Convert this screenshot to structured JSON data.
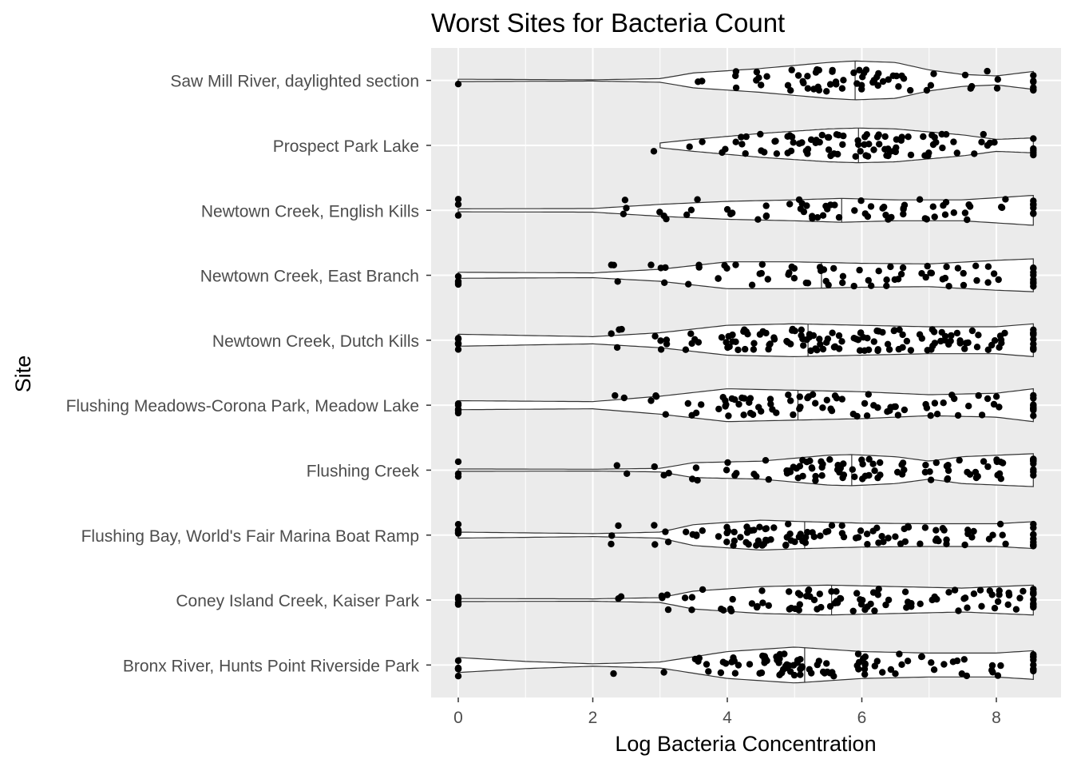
{
  "chart_data": {
    "type": "violin",
    "title": "Worst Sites for Bacteria Count",
    "xlabel": "Log Bacteria Concentration",
    "ylabel": "Site",
    "xlim": [
      -0.2,
      8.9
    ],
    "x_ticks": [
      0,
      2,
      4,
      6,
      8
    ],
    "grid": true,
    "panel_background": "#ebebeb",
    "overlay": "jittered points with median line",
    "sites": [
      {
        "name": "Bronx River, Hunts Point Riverside Park",
        "median": 5.15,
        "profile": [
          [
            0,
            0.25
          ],
          [
            1,
            0.12
          ],
          [
            2,
            0.04
          ],
          [
            3,
            0.1
          ],
          [
            4,
            0.45
          ],
          [
            5,
            0.6
          ],
          [
            5.15,
            0.58
          ],
          [
            6,
            0.45
          ],
          [
            7,
            0.4
          ],
          [
            8,
            0.4
          ],
          [
            8.55,
            0.48
          ]
        ],
        "points": [
          [
            0,
            6
          ],
          [
            2.4,
            1
          ],
          [
            3,
            1
          ],
          [
            3.5,
            3
          ],
          [
            3.8,
            3
          ],
          [
            4,
            5
          ],
          [
            4.2,
            3
          ],
          [
            4.5,
            8
          ],
          [
            4.8,
            10
          ],
          [
            5,
            10
          ],
          [
            5.2,
            6
          ],
          [
            5.5,
            8
          ],
          [
            6,
            10
          ],
          [
            6.3,
            4
          ],
          [
            6.6,
            4
          ],
          [
            7,
            4
          ],
          [
            7.3,
            3
          ],
          [
            7.6,
            3
          ],
          [
            8,
            5
          ],
          [
            8.55,
            8
          ]
        ]
      },
      {
        "name": "Coney Island Creek, Kaiser Park",
        "median": 5.55,
        "profile": [
          [
            0,
            0.05
          ],
          [
            2,
            0.04
          ],
          [
            3,
            0.08
          ],
          [
            3.5,
            0.3
          ],
          [
            4.5,
            0.45
          ],
          [
            5.5,
            0.5
          ],
          [
            6.5,
            0.45
          ],
          [
            7.5,
            0.4
          ],
          [
            8.55,
            0.5
          ]
        ],
        "points": [
          [
            0,
            4
          ],
          [
            2.4,
            2
          ],
          [
            3,
            4
          ],
          [
            3.5,
            4
          ],
          [
            4,
            5
          ],
          [
            4.5,
            6
          ],
          [
            5,
            8
          ],
          [
            5.3,
            8
          ],
          [
            5.6,
            8
          ],
          [
            6,
            8
          ],
          [
            6.3,
            6
          ],
          [
            6.6,
            5
          ],
          [
            7,
            4
          ],
          [
            7.4,
            5
          ],
          [
            7.7,
            4
          ],
          [
            8,
            6
          ],
          [
            8.3,
            6
          ],
          [
            8.55,
            10
          ]
        ]
      },
      {
        "name": "Flushing Bay, World's Fair Marina Boat Ramp",
        "median": 5.15,
        "profile": [
          [
            0,
            0.1
          ],
          [
            2,
            0.05
          ],
          [
            3,
            0.1
          ],
          [
            3.5,
            0.35
          ],
          [
            4.5,
            0.5
          ],
          [
            5.15,
            0.45
          ],
          [
            6,
            0.4
          ],
          [
            7,
            0.38
          ],
          [
            8,
            0.38
          ],
          [
            8.55,
            0.45
          ]
        ],
        "points": [
          [
            0,
            5
          ],
          [
            2.4,
            3
          ],
          [
            3,
            4
          ],
          [
            3.5,
            5
          ],
          [
            4,
            8
          ],
          [
            4.3,
            8
          ],
          [
            4.6,
            10
          ],
          [
            5,
            10
          ],
          [
            5.3,
            6
          ],
          [
            5.6,
            6
          ],
          [
            6,
            5
          ],
          [
            6.3,
            6
          ],
          [
            6.6,
            6
          ],
          [
            7,
            6
          ],
          [
            7.3,
            4
          ],
          [
            7.6,
            5
          ],
          [
            8,
            5
          ],
          [
            8.55,
            10
          ]
        ]
      },
      {
        "name": "Flushing Creek",
        "median": 5.85,
        "profile": [
          [
            0,
            0.04
          ],
          [
            2,
            0.03
          ],
          [
            3,
            0.06
          ],
          [
            3.5,
            0.25
          ],
          [
            4.5,
            0.3
          ],
          [
            5.5,
            0.5
          ],
          [
            5.85,
            0.52
          ],
          [
            6.5,
            0.45
          ],
          [
            7,
            0.3
          ],
          [
            7.5,
            0.45
          ],
          [
            8.55,
            0.55
          ]
        ],
        "points": [
          [
            0,
            3
          ],
          [
            2.4,
            2
          ],
          [
            3,
            3
          ],
          [
            3.5,
            3
          ],
          [
            4,
            4
          ],
          [
            4.5,
            4
          ],
          [
            5,
            10
          ],
          [
            5.3,
            10
          ],
          [
            5.6,
            10
          ],
          [
            6,
            8
          ],
          [
            6.3,
            5
          ],
          [
            6.6,
            5
          ],
          [
            7,
            5
          ],
          [
            7.4,
            6
          ],
          [
            7.7,
            6
          ],
          [
            8,
            8
          ],
          [
            8.55,
            10
          ]
        ]
      },
      {
        "name": "Flushing Meadows-Corona Park, Meadow Lake",
        "median": 5.05,
        "profile": [
          [
            0,
            0.15
          ],
          [
            2,
            0.12
          ],
          [
            3,
            0.3
          ],
          [
            4,
            0.55
          ],
          [
            5,
            0.5
          ],
          [
            6,
            0.45
          ],
          [
            7,
            0.35
          ],
          [
            8,
            0.4
          ],
          [
            8.55,
            0.55
          ]
        ],
        "points": [
          [
            0,
            5
          ],
          [
            2.4,
            2
          ],
          [
            3,
            4
          ],
          [
            3.5,
            4
          ],
          [
            4,
            8
          ],
          [
            4.3,
            8
          ],
          [
            4.6,
            6
          ],
          [
            5,
            6
          ],
          [
            5.3,
            5
          ],
          [
            5.6,
            6
          ],
          [
            6,
            5
          ],
          [
            6.3,
            5
          ],
          [
            6.6,
            4
          ],
          [
            7,
            5
          ],
          [
            7.3,
            4
          ],
          [
            7.7,
            3
          ],
          [
            8,
            4
          ],
          [
            8.55,
            10
          ]
        ]
      },
      {
        "name": "Newtown Creek, Dutch Kills ",
        "median": 5.2,
        "profile": [
          [
            0,
            0.2
          ],
          [
            2,
            0.12
          ],
          [
            3,
            0.25
          ],
          [
            4,
            0.5
          ],
          [
            5,
            0.55
          ],
          [
            6,
            0.5
          ],
          [
            7,
            0.45
          ],
          [
            8,
            0.45
          ],
          [
            8.55,
            0.55
          ]
        ],
        "points": [
          [
            0,
            8
          ],
          [
            2.4,
            4
          ],
          [
            3,
            5
          ],
          [
            3.5,
            5
          ],
          [
            4,
            8
          ],
          [
            4.3,
            8
          ],
          [
            4.6,
            8
          ],
          [
            5,
            10
          ],
          [
            5.3,
            10
          ],
          [
            5.6,
            8
          ],
          [
            6,
            10
          ],
          [
            6.3,
            8
          ],
          [
            6.6,
            8
          ],
          [
            7,
            8
          ],
          [
            7.3,
            8
          ],
          [
            7.6,
            8
          ],
          [
            8,
            8
          ],
          [
            8.55,
            10
          ]
        ]
      },
      {
        "name": "Newtown Creek, East Branch",
        "median": 5.4,
        "profile": [
          [
            0,
            0.1
          ],
          [
            2,
            0.08
          ],
          [
            3,
            0.2
          ],
          [
            4,
            0.45
          ],
          [
            5,
            0.45
          ],
          [
            6,
            0.4
          ],
          [
            7,
            0.38
          ],
          [
            8,
            0.5
          ],
          [
            8.55,
            0.55
          ]
        ],
        "points": [
          [
            0,
            4
          ],
          [
            2.4,
            3
          ],
          [
            3,
            4
          ],
          [
            3.5,
            3
          ],
          [
            4,
            5
          ],
          [
            4.5,
            5
          ],
          [
            5,
            5
          ],
          [
            5.3,
            5
          ],
          [
            5.6,
            5
          ],
          [
            6,
            4
          ],
          [
            6.3,
            4
          ],
          [
            6.6,
            4
          ],
          [
            7,
            5
          ],
          [
            7.3,
            5
          ],
          [
            7.6,
            4
          ],
          [
            8,
            4
          ],
          [
            8.55,
            8
          ]
        ]
      },
      {
        "name": "Newtown Creek, English Kills",
        "median": 5.7,
        "profile": [
          [
            0,
            0.05
          ],
          [
            2,
            0.06
          ],
          [
            3,
            0.2
          ],
          [
            4,
            0.3
          ],
          [
            5,
            0.35
          ],
          [
            5.7,
            0.4
          ],
          [
            6.5,
            0.35
          ],
          [
            7.5,
            0.35
          ],
          [
            8.55,
            0.5
          ]
        ],
        "points": [
          [
            0,
            3
          ],
          [
            2.4,
            3
          ],
          [
            3,
            3
          ],
          [
            3.5,
            3
          ],
          [
            4,
            3
          ],
          [
            4.5,
            4
          ],
          [
            5,
            5
          ],
          [
            5.3,
            5
          ],
          [
            5.6,
            5
          ],
          [
            6,
            5
          ],
          [
            6.3,
            5
          ],
          [
            6.6,
            4
          ],
          [
            7,
            5
          ],
          [
            7.3,
            4
          ],
          [
            7.6,
            4
          ],
          [
            8,
            3
          ],
          [
            8.55,
            6
          ]
        ]
      },
      {
        "name": "Prospect Park Lake",
        "median": 5.95,
        "profile": [
          [
            3,
            0.08
          ],
          [
            3.5,
            0.2
          ],
          [
            4.5,
            0.4
          ],
          [
            5.5,
            0.55
          ],
          [
            5.95,
            0.58
          ],
          [
            6.5,
            0.55
          ],
          [
            7.5,
            0.35
          ],
          [
            8,
            0.2
          ],
          [
            8.55,
            0.25
          ]
        ],
        "points": [
          [
            3,
            1
          ],
          [
            3.5,
            2
          ],
          [
            4,
            3
          ],
          [
            4.3,
            4
          ],
          [
            4.6,
            6
          ],
          [
            5,
            8
          ],
          [
            5.3,
            8
          ],
          [
            5.6,
            10
          ],
          [
            6,
            10
          ],
          [
            6.3,
            10
          ],
          [
            6.6,
            8
          ],
          [
            7,
            8
          ],
          [
            7.3,
            5
          ],
          [
            7.8,
            3
          ],
          [
            8,
            3
          ],
          [
            8.55,
            5
          ]
        ]
      },
      {
        "name": "Saw Mill River, daylighted section",
        "median": 5.9,
        "profile": [
          [
            0,
            0.04
          ],
          [
            2,
            0.02
          ],
          [
            3,
            0.06
          ],
          [
            3.5,
            0.25
          ],
          [
            4.5,
            0.4
          ],
          [
            5.5,
            0.6
          ],
          [
            5.9,
            0.65
          ],
          [
            6.5,
            0.6
          ],
          [
            7,
            0.35
          ],
          [
            7.5,
            0.2
          ],
          [
            8,
            0.15
          ],
          [
            8.55,
            0.3
          ]
        ],
        "points": [
          [
            0,
            1
          ],
          [
            3.5,
            2
          ],
          [
            4,
            3
          ],
          [
            4.5,
            5
          ],
          [
            5,
            6
          ],
          [
            5.3,
            8
          ],
          [
            5.6,
            8
          ],
          [
            6,
            8
          ],
          [
            6.3,
            8
          ],
          [
            6.6,
            6
          ],
          [
            7,
            3
          ],
          [
            7.5,
            3
          ],
          [
            8,
            3
          ],
          [
            8.55,
            6
          ]
        ]
      }
    ]
  }
}
